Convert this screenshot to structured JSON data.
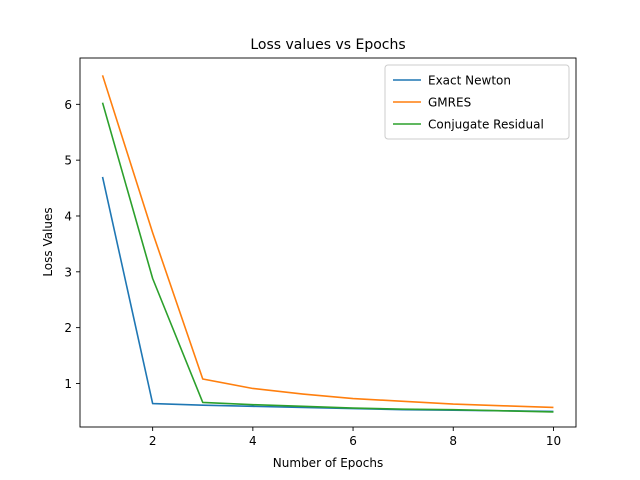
{
  "chart_data": {
    "type": "line",
    "title": "Loss values vs Epochs",
    "xlabel": "Number of Epochs",
    "ylabel": "Loss Values",
    "xlim": [
      0.55,
      10.45
    ],
    "ylim": [
      0.22,
      6.83
    ],
    "xticks": [
      2,
      4,
      6,
      8,
      10
    ],
    "yticks": [
      1,
      2,
      3,
      4,
      5,
      6
    ],
    "grid": false,
    "legend_position": "top-right",
    "x": [
      1,
      2,
      3,
      4,
      5,
      6,
      7,
      8,
      9,
      10
    ],
    "series": [
      {
        "name": "Exact Newton",
        "color": "#1f77b4",
        "values": [
          4.7,
          0.64,
          0.61,
          0.59,
          0.57,
          0.55,
          0.53,
          0.52,
          0.51,
          0.5
        ]
      },
      {
        "name": "GMRES",
        "color": "#ff7f0e",
        "values": [
          6.52,
          3.7,
          1.08,
          0.91,
          0.81,
          0.73,
          0.68,
          0.63,
          0.6,
          0.57
        ]
      },
      {
        "name": "Conjugate Residual",
        "color": "#2ca02c",
        "values": [
          6.03,
          2.88,
          0.66,
          0.62,
          0.59,
          0.56,
          0.54,
          0.53,
          0.51,
          0.49
        ]
      }
    ]
  }
}
